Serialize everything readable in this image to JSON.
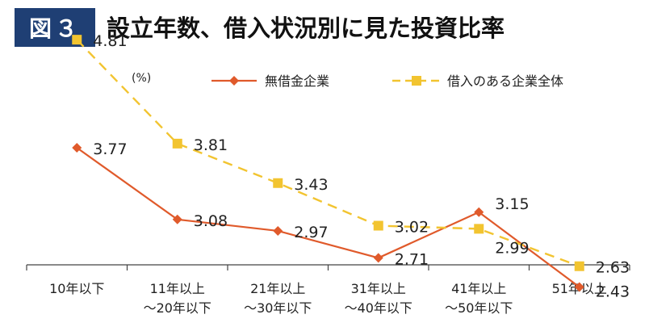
{
  "header": {
    "badge": "図３",
    "title": "設立年数、借入状況別に見た投資比率"
  },
  "chart_data": {
    "type": "line",
    "categories": [
      [
        "10年以下"
      ],
      [
        "11年以上",
        "～20年以下"
      ],
      [
        "21年以上",
        "～30年以下"
      ],
      [
        "31年以上",
        "～40年以下"
      ],
      [
        "41年以上",
        "～50年以下"
      ],
      [
        "51年以上"
      ]
    ],
    "unit": "(%)",
    "ylim": [
      2.0,
      5.2
    ],
    "grid": false,
    "legend_position": "top",
    "series": [
      {
        "name": "無借金企業",
        "values": [
          3.77,
          3.08,
          2.97,
          2.71,
          3.15,
          2.43
        ],
        "color": "#e05a2b",
        "style": "solid",
        "marker": "diamond",
        "labels": [
          "3.77",
          "3.08",
          "2.97",
          "2.71",
          "3.15",
          "2.43"
        ]
      },
      {
        "name": "借入のある企業全体",
        "values": [
          4.81,
          3.81,
          3.43,
          3.02,
          2.99,
          2.63
        ],
        "color": "#f2c430",
        "style": "dashed",
        "marker": "square",
        "labels": [
          "4.81",
          "3.81",
          "3.43",
          "3.02",
          "2.99",
          "2.63"
        ]
      }
    ]
  }
}
